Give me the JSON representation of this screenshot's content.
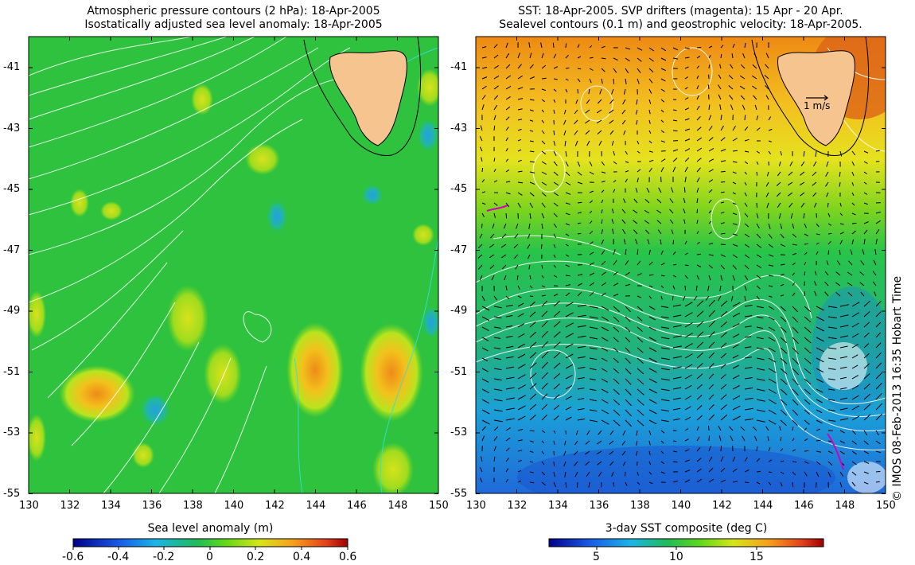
{
  "left_panel": {
    "title_line1": "Atmospheric pressure contours (2 hPa): 18-Apr-2005",
    "title_line2": "Isostatically adjusted sea level anomaly: 18-Apr-2005",
    "colorbar_label": "Sea level anomaly (m)",
    "colorbar_ticks": [
      "-0.6",
      "-0.4",
      "-0.2",
      "0",
      "0.2",
      "0.4",
      "0.6"
    ]
  },
  "right_panel": {
    "title_line1": "SST: 18-Apr-2005. SVP drifters (magenta): 15 Apr - 20 Apr.",
    "title_line2": "Sealevel contours (0.1 m) and geostrophic velocity: 18-Apr-2005.",
    "colorbar_label": "3-day SST composite (deg C)",
    "colorbar_ticks": [
      "5",
      "10",
      "15"
    ],
    "velocity_key": "1 m/s"
  },
  "x_ticks": [
    "130",
    "132",
    "134",
    "136",
    "138",
    "140",
    "142",
    "144",
    "146",
    "148",
    "150"
  ],
  "y_ticks": [
    "-41",
    "-43",
    "-45",
    "-47",
    "-49",
    "-51",
    "-53",
    "-55"
  ],
  "credit": "© IMOS 08-Feb-2013 16:35 Hobart Time",
  "colors": {
    "ocean_green": "#27c43e",
    "land": "#f6c48f",
    "warm": "#f5a01a",
    "cold": "#1a6ad8",
    "contour": "#ffffff"
  }
}
